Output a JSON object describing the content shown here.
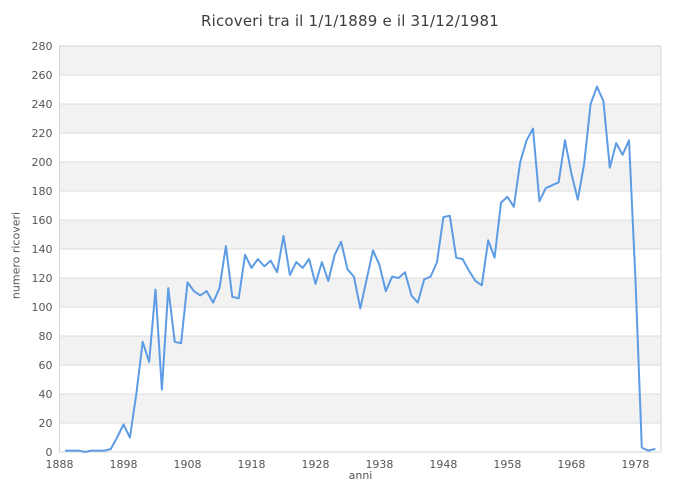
{
  "title": "Ricoveri tra il 1/1/1889 e il 31/12/1981",
  "chart_data": {
    "type": "line",
    "title": "Ricoveri tra il 1/1/1889 e il 31/12/1981",
    "xlabel": "anni",
    "ylabel": "numero ricoveri",
    "xlim": [
      1888,
      1982
    ],
    "ylim": [
      0,
      280
    ],
    "x_ticks": [
      1888,
      1898,
      1908,
      1918,
      1928,
      1938,
      1948,
      1958,
      1968,
      1978
    ],
    "y_ticks": [
      0,
      20,
      40,
      60,
      80,
      100,
      120,
      140,
      160,
      180,
      200,
      220,
      240,
      260,
      280
    ],
    "grid": true,
    "band_rows": true,
    "legend_position": "none",
    "colors": {
      "line": "#5d9ce5",
      "band": "#f2f2f2",
      "grid": "#dcdcdc",
      "border": "#d6d6d6",
      "tick_text": "#565656",
      "title_text": "#3d3d3d",
      "background": "#ffffff"
    },
    "series": [
      {
        "name": "ricoveri",
        "x": [
          1889,
          1890,
          1891,
          1892,
          1893,
          1894,
          1895,
          1896,
          1897,
          1898,
          1899,
          1900,
          1901,
          1902,
          1903,
          1904,
          1905,
          1906,
          1907,
          1908,
          1909,
          1910,
          1911,
          1912,
          1913,
          1914,
          1915,
          1916,
          1917,
          1918,
          1919,
          1920,
          1921,
          1922,
          1923,
          1924,
          1925,
          1926,
          1927,
          1928,
          1929,
          1930,
          1931,
          1932,
          1933,
          1934,
          1935,
          1936,
          1937,
          1938,
          1939,
          1940,
          1941,
          1942,
          1943,
          1944,
          1945,
          1946,
          1947,
          1948,
          1949,
          1950,
          1951,
          1952,
          1953,
          1954,
          1955,
          1956,
          1957,
          1958,
          1959,
          1960,
          1961,
          1962,
          1963,
          1964,
          1965,
          1966,
          1967,
          1968,
          1969,
          1970,
          1971,
          1972,
          1973,
          1974,
          1975,
          1976,
          1977,
          1978,
          1979,
          1980,
          1981
        ],
        "y": [
          1,
          1,
          1,
          0,
          1,
          1,
          1,
          2,
          10,
          19,
          10,
          40,
          76,
          62,
          112,
          43,
          113,
          76,
          75,
          117,
          111,
          108,
          111,
          103,
          113,
          142,
          107,
          106,
          136,
          127,
          133,
          128,
          132,
          124,
          149,
          122,
          131,
          127,
          133,
          116,
          131,
          118,
          136,
          145,
          126,
          121,
          99,
          119,
          139,
          129,
          111,
          121,
          120,
          124,
          108,
          103,
          119,
          121,
          131,
          162,
          163,
          134,
          133,
          125,
          118,
          115,
          146,
          134,
          172,
          176,
          169,
          200,
          215,
          223,
          173,
          182,
          184,
          186,
          215,
          192,
          174,
          199,
          240,
          252,
          242,
          196,
          213,
          205,
          215,
          120,
          3,
          1,
          2
        ]
      }
    ]
  }
}
